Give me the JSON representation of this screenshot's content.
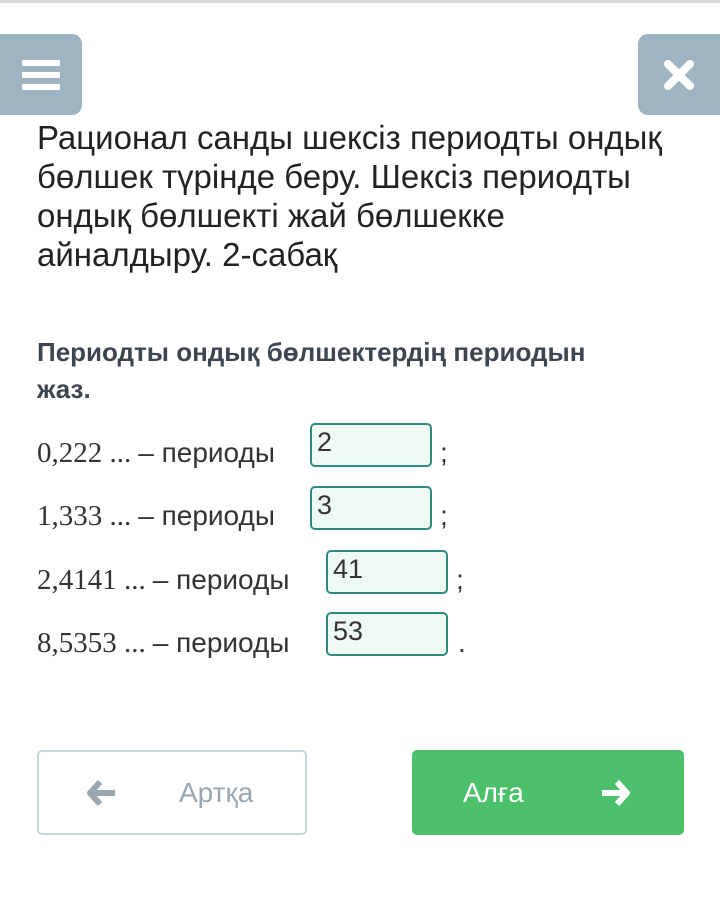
{
  "header": {
    "menu_icon": "hamburger-menu-icon",
    "close_icon": "close-x-icon"
  },
  "lesson_title": "Рационал санды шексіз периодты ондық бөлшек түрінде беру. Шексіз периодты ондық бөлшекті жай бөлшекке айналдыру. 2-сабақ",
  "task": "Периодты ондық бөлшектердің периодын жаз.",
  "rows": [
    {
      "number": "0,222 ...",
      "label": "– периоды",
      "answer": "2",
      "punct": ";"
    },
    {
      "number": "1,333 ...",
      "label": "– периоды",
      "answer": "3",
      "punct": ";"
    },
    {
      "number": "2,4141 ...",
      "label": "– периоды",
      "answer": "41",
      "punct": ";"
    },
    {
      "number": "8,5353 ...",
      "label": "– периоды",
      "answer": "53",
      "punct": "."
    }
  ],
  "nav": {
    "back_label": "Артқа",
    "next_label": "Алға",
    "back_icon": "arrow-left-icon",
    "next_icon": "arrow-right-icon"
  },
  "colors": {
    "header_buttons": "#9fb4c2",
    "input_border": "#2e8b7a",
    "next_button": "#4cc06b"
  }
}
